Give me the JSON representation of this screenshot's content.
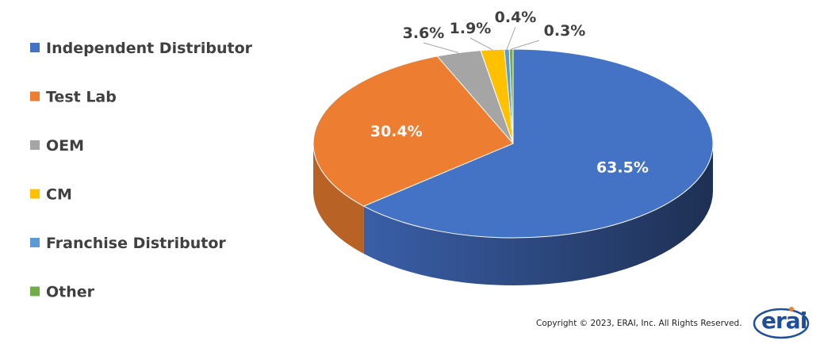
{
  "chart_data": {
    "type": "pie",
    "categories": [
      "Independent Distributor",
      "Test Lab",
      "OEM",
      "CM",
      "Franchise Distributor",
      "Other"
    ],
    "values": [
      63.5,
      30.4,
      3.6,
      1.9,
      0.4,
      0.3
    ],
    "data_labels": [
      "63.5%",
      "30.4%",
      "3.6%",
      "1.9%",
      "0.4%",
      "0.3%"
    ],
    "colors": [
      "#4472C4",
      "#ED7D31",
      "#A5A5A5",
      "#FFC000",
      "#5B9BD5",
      "#70AD47"
    ],
    "legend_position": "left",
    "style": "3d"
  },
  "footer": {
    "copyright": "Copyright © 2023, ERAI, Inc.  All Rights Reserved.",
    "logo": "erai"
  }
}
